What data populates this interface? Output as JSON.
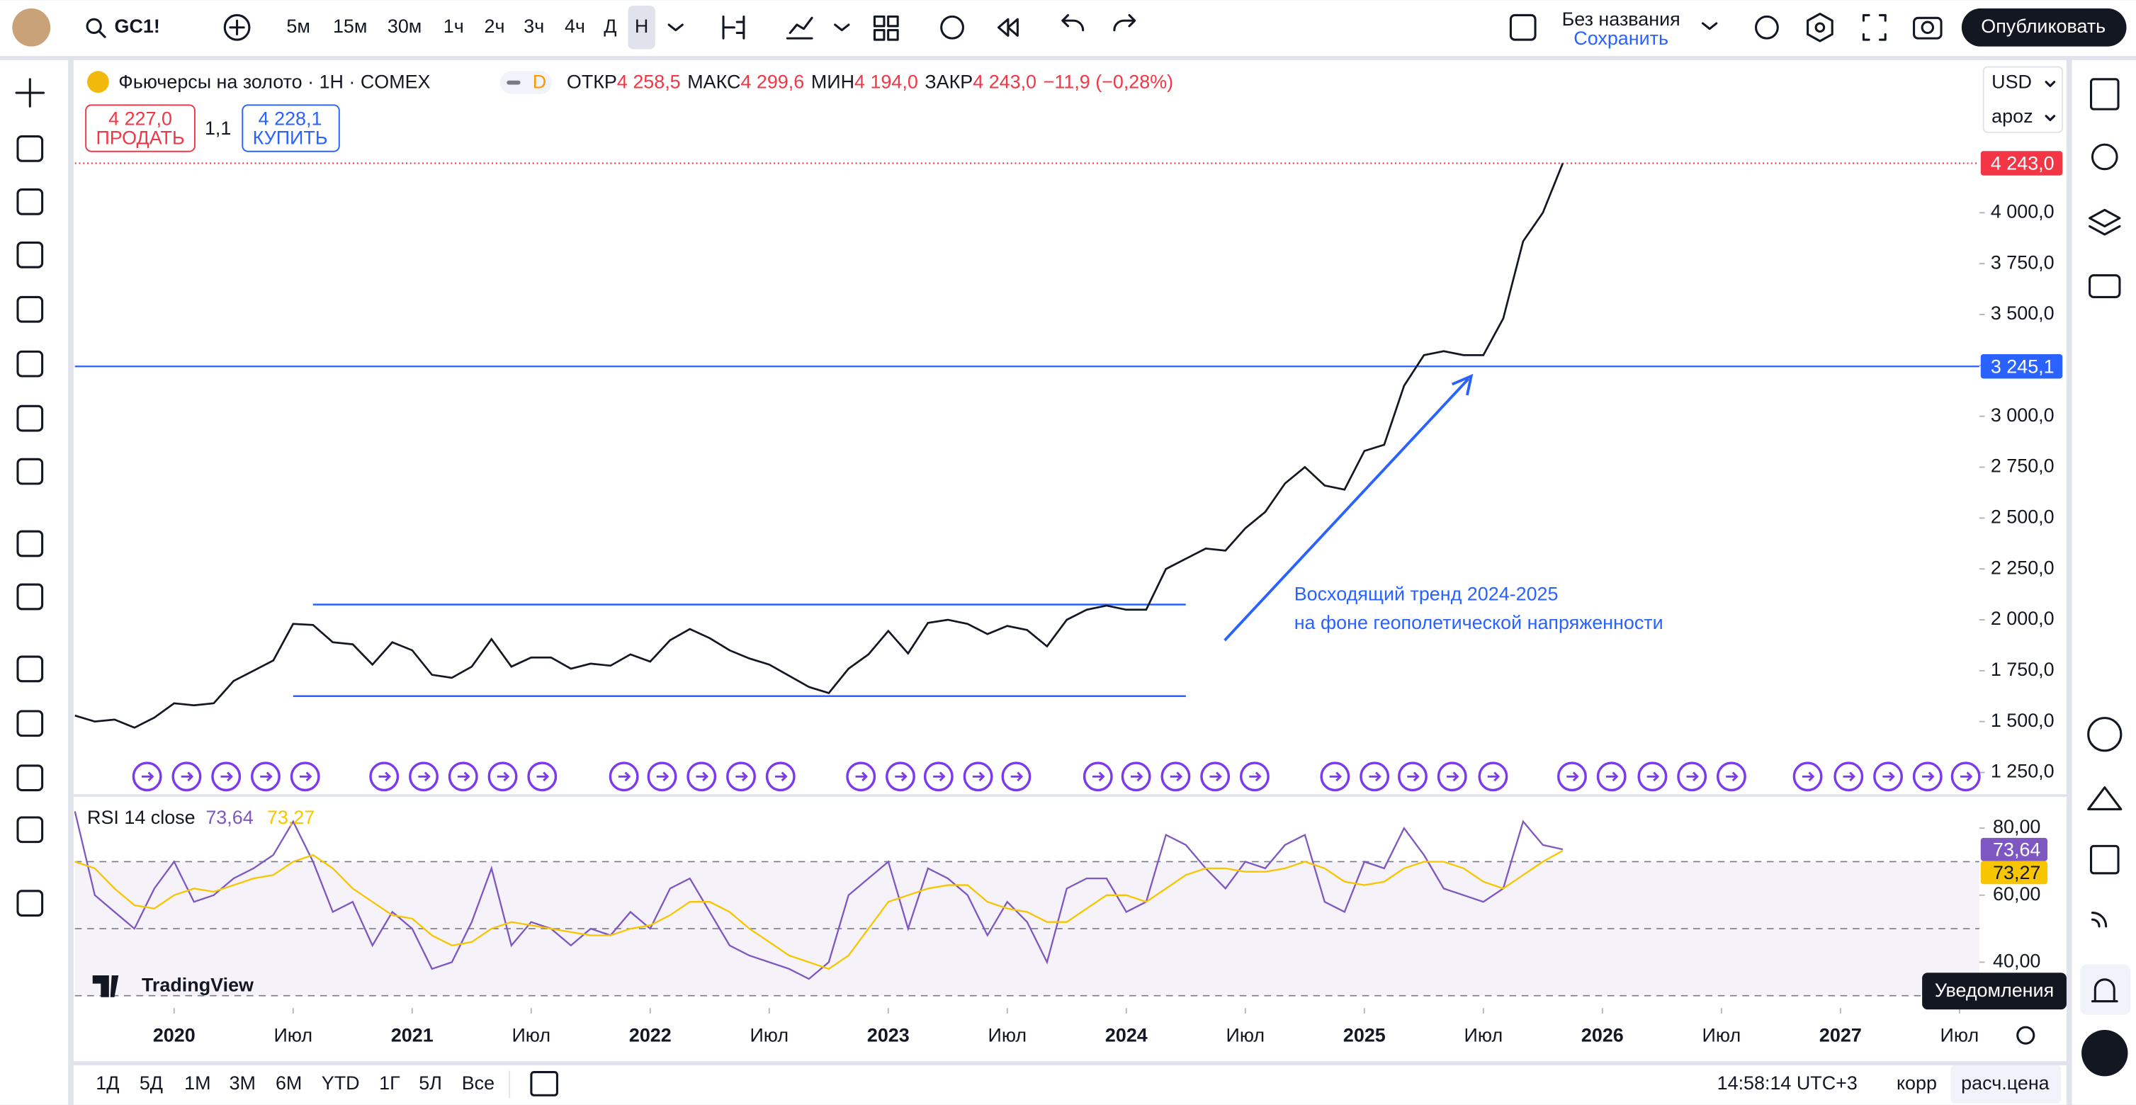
{
  "top_toolbar": {
    "symbol": "GC1!",
    "intervals": [
      "5м",
      "15м",
      "30м",
      "1ч",
      "2ч",
      "3ч",
      "4ч",
      "Д",
      "Н"
    ],
    "layout_name": "Без названия",
    "save": "Сохранить",
    "publish": "Опубликовать"
  },
  "legend": {
    "title": "Фьючерсы на золото · 1Н · COMEX",
    "badge": "D",
    "ohlc": [
      {
        "label": "ОТКР",
        "value": "4 258,5"
      },
      {
        "label": "МАКС",
        "value": "4 299,6"
      },
      {
        "label": "МИН",
        "value": "4 194,0"
      },
      {
        "label": "ЗАКР",
        "value": "4 243,0"
      }
    ],
    "change": "−11,9 (−0,28%)",
    "sell_price": "4 227,0",
    "sell": "ПРОДАТЬ",
    "spread": "1,1",
    "buy_price": "4 228,1",
    "buy": "КУПИТЬ"
  },
  "scale_menu": {
    "currency": "USD",
    "mode": "apoz"
  },
  "chart_data": [
    {
      "type": "line",
      "color": "#131722",
      "grid": false,
      "xlim": [
        "2019-08",
        "2027-08"
      ],
      "xticks": [
        {
          "value": "2020-01",
          "label": "2020"
        },
        {
          "value": "2020-07",
          "label": "Июл"
        },
        {
          "value": "2021-01",
          "label": "2021"
        },
        {
          "value": "2021-07",
          "label": "Июл"
        },
        {
          "value": "2022-01",
          "label": "2022"
        },
        {
          "value": "2022-07",
          "label": "Июл"
        },
        {
          "value": "2023-01",
          "label": "2023"
        },
        {
          "value": "2023-07",
          "label": "Июл"
        },
        {
          "value": "2024-01",
          "label": "2024"
        },
        {
          "value": "2024-07",
          "label": "Июл"
        },
        {
          "value": "2025-01",
          "label": "2025"
        },
        {
          "value": "2025-07",
          "label": "Июл"
        },
        {
          "value": "2026-01",
          "label": "2026"
        },
        {
          "value": "2026-07",
          "label": "Июл"
        },
        {
          "value": "2027-01",
          "label": "2027"
        },
        {
          "value": "2027-07",
          "label": "Июл"
        }
      ],
      "ylim": [
        1143,
        4743
      ],
      "yticks": [
        {
          "value": 1250,
          "label": "1 250,0"
        },
        {
          "value": 1500,
          "label": "1 500,0"
        },
        {
          "value": 1750,
          "label": "1 750,0"
        },
        {
          "value": 2000,
          "label": "2 000,0"
        },
        {
          "value": 2250,
          "label": "2 250,0"
        },
        {
          "value": 2500,
          "label": "2 500,0"
        },
        {
          "value": 2750,
          "label": "2 750,0"
        },
        {
          "value": 3000,
          "label": "3 000,0"
        },
        {
          "value": 3250,
          "label": "3 250,0"
        },
        {
          "value": 3500,
          "label": "3 500,0"
        },
        {
          "value": 3750,
          "label": "3 750,0"
        },
        {
          "value": 4000,
          "label": "4 000,0"
        }
      ],
      "x": [
        "2019-08",
        "2019-09",
        "2019-10",
        "2019-11",
        "2019-12",
        "2020-01",
        "2020-02",
        "2020-03",
        "2020-04",
        "2020-05",
        "2020-06",
        "2020-07",
        "2020-08",
        "2020-09",
        "2020-10",
        "2020-11",
        "2020-12",
        "2021-01",
        "2021-02",
        "2021-03",
        "2021-04",
        "2021-05",
        "2021-06",
        "2021-07",
        "2021-08",
        "2021-09",
        "2021-10",
        "2021-11",
        "2021-12",
        "2022-01",
        "2022-02",
        "2022-03",
        "2022-04",
        "2022-05",
        "2022-06",
        "2022-07",
        "2022-08",
        "2022-09",
        "2022-10",
        "2022-11",
        "2022-12",
        "2023-01",
        "2023-02",
        "2023-03",
        "2023-04",
        "2023-05",
        "2023-06",
        "2023-07",
        "2023-08",
        "2023-09",
        "2023-10",
        "2023-11",
        "2023-12",
        "2024-01",
        "2024-02",
        "2024-03",
        "2024-04",
        "2024-05",
        "2024-06",
        "2024-07",
        "2024-08",
        "2024-09",
        "2024-10",
        "2024-11",
        "2024-12",
        "2025-01",
        "2025-02",
        "2025-03",
        "2025-04",
        "2025-05",
        "2025-06",
        "2025-07",
        "2025-08",
        "2025-09",
        "2025-10",
        "2025-11"
      ],
      "values": [
        1530,
        1500,
        1510,
        1470,
        1520,
        1590,
        1580,
        1590,
        1700,
        1750,
        1800,
        1980,
        1975,
        1890,
        1880,
        1780,
        1890,
        1850,
        1730,
        1715,
        1770,
        1905,
        1770,
        1815,
        1815,
        1760,
        1785,
        1775,
        1830,
        1795,
        1900,
        1955,
        1910,
        1850,
        1810,
        1780,
        1725,
        1670,
        1640,
        1760,
        1830,
        1945,
        1835,
        1985,
        2000,
        1980,
        1930,
        1970,
        1950,
        1870,
        2000,
        2050,
        2070,
        2050,
        2050,
        2250,
        2300,
        2350,
        2340,
        2450,
        2530,
        2670,
        2750,
        2660,
        2640,
        2830,
        2860,
        3150,
        3300,
        3320,
        3300,
        3300,
        3480,
        3860,
        4000,
        4243
      ],
      "lines": [
        {
          "value": 4243,
          "label": "4 243,0",
          "color": "#f23645"
        },
        {
          "value": 3245.1,
          "label": "3 245,1",
          "color": "#2962ff"
        }
      ],
      "range_lines": [
        {
          "value": 2075,
          "from": "2020-08",
          "to": "2024-04"
        },
        {
          "value": 1625,
          "from": "2020-07",
          "to": "2024-04"
        }
      ],
      "annotation": [
        "Восходящий тренд 2024-2025",
        "на фоне геополетической напряженности"
      ]
    },
    {
      "type": "line",
      "title": "RSI 14 close",
      "grid": false,
      "xlim": [
        "2019-08",
        "2027-08"
      ],
      "ylim": [
        26.3,
        89.3
      ],
      "yticks": [
        {
          "value": 40,
          "label": "40,00"
        },
        {
          "value": 60,
          "label": "60,00"
        },
        {
          "value": 80,
          "label": "80,00"
        }
      ],
      "levels": [
        30,
        50,
        70
      ],
      "x": [
        "2019-08",
        "2019-09",
        "2019-10",
        "2019-11",
        "2019-12",
        "2020-01",
        "2020-02",
        "2020-03",
        "2020-04",
        "2020-05",
        "2020-06",
        "2020-07",
        "2020-08",
        "2020-09",
        "2020-10",
        "2020-11",
        "2020-12",
        "2021-01",
        "2021-02",
        "2021-03",
        "2021-04",
        "2021-05",
        "2021-06",
        "2021-07",
        "2021-08",
        "2021-09",
        "2021-10",
        "2021-11",
        "2021-12",
        "2022-01",
        "2022-02",
        "2022-03",
        "2022-04",
        "2022-05",
        "2022-06",
        "2022-07",
        "2022-08",
        "2022-09",
        "2022-10",
        "2022-11",
        "2022-12",
        "2023-01",
        "2023-02",
        "2023-03",
        "2023-04",
        "2023-05",
        "2023-06",
        "2023-07",
        "2023-08",
        "2023-09",
        "2023-10",
        "2023-11",
        "2023-12",
        "2024-01",
        "2024-02",
        "2024-03",
        "2024-04",
        "2024-05",
        "2024-06",
        "2024-07",
        "2024-08",
        "2024-09",
        "2024-10",
        "2024-11",
        "2024-12",
        "2025-01",
        "2025-02",
        "2025-03",
        "2025-04",
        "2025-05",
        "2025-06",
        "2025-07",
        "2025-08",
        "2025-09",
        "2025-10",
        "2025-11"
      ],
      "series": [
        {
          "color": "#7e57c2",
          "last_label": "73,64",
          "values": [
            85,
            60,
            55,
            50,
            62,
            70,
            58,
            60,
            65,
            68,
            72,
            82,
            70,
            55,
            58,
            45,
            55,
            50,
            38,
            40,
            52,
            68,
            45,
            52,
            50,
            45,
            50,
            48,
            55,
            50,
            62,
            65,
            55,
            45,
            42,
            40,
            38,
            35,
            40,
            60,
            65,
            70,
            50,
            68,
            65,
            60,
            48,
            58,
            52,
            40,
            62,
            65,
            65,
            55,
            58,
            78,
            75,
            68,
            62,
            70,
            68,
            75,
            78,
            58,
            55,
            70,
            68,
            80,
            72,
            62,
            60,
            58,
            62,
            82,
            75,
            73.64
          ]
        },
        {
          "color": "#f7c600",
          "last_label": "73,27",
          "values": [
            70,
            68,
            62,
            57,
            56,
            60,
            62,
            61,
            63,
            65,
            66,
            70,
            72,
            68,
            62,
            58,
            54,
            53,
            48,
            45,
            46,
            50,
            52,
            51,
            50,
            49,
            48,
            48,
            50,
            51,
            54,
            58,
            58,
            55,
            50,
            46,
            42,
            40,
            38,
            42,
            50,
            58,
            60,
            62,
            63,
            63,
            58,
            56,
            55,
            52,
            52,
            56,
            60,
            60,
            58,
            62,
            66,
            68,
            68,
            67,
            67,
            68,
            70,
            68,
            64,
            63,
            64,
            68,
            70,
            70,
            68,
            64,
            62,
            66,
            70,
            73.27
          ]
        }
      ]
    }
  ],
  "logo": "TradingView",
  "bottom_toolbar": {
    "ranges": [
      "1Д",
      "5Д",
      "1М",
      "3М",
      "6М",
      "YTD",
      "1Г",
      "5Л",
      "Все"
    ],
    "time": "14:58:14 UTC+3",
    "adj": "корр",
    "settlement": "расч.цена"
  },
  "tooltip": "Уведомления"
}
